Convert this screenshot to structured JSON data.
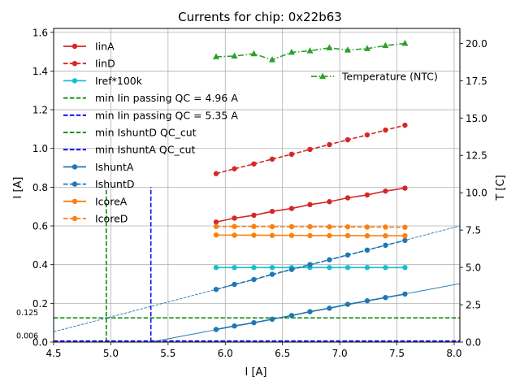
{
  "chart_data": {
    "type": "line",
    "title": "Currents for chip: 0x22b63",
    "xlabel": "I [A]",
    "ylabel": "I [A]",
    "y2label": "T [C]",
    "xlim": [
      4.5,
      8.05
    ],
    "ylim": [
      0.0,
      1.62
    ],
    "y2lim": [
      0.0,
      21.0
    ],
    "xticks": [
      "4.5",
      "5.0",
      "5.5",
      "6.0",
      "6.5",
      "7.0",
      "7.5",
      "8.0"
    ],
    "yticks": [
      "0.0",
      "0.2",
      "0.4",
      "0.6",
      "0.8",
      "1.0",
      "1.2",
      "1.4",
      "1.6"
    ],
    "y2ticks": [
      "0.0",
      "2.5",
      "5.0",
      "7.5",
      "10.0",
      "12.5",
      "15.0",
      "17.5",
      "20.0"
    ],
    "grid": true,
    "legend_position": "upper-left",
    "x": [
      5.92,
      6.08,
      6.25,
      6.41,
      6.58,
      6.74,
      6.91,
      7.07,
      7.24,
      7.4,
      7.57
    ],
    "series": [
      {
        "name": "IinA",
        "color": "#d62728",
        "dash": "solid",
        "axis": "left",
        "values": [
          0.62,
          0.64,
          0.655,
          0.675,
          0.69,
          0.71,
          0.725,
          0.745,
          0.76,
          0.78,
          0.795
        ]
      },
      {
        "name": "IinD",
        "color": "#d62728",
        "dash": "dashed",
        "axis": "left",
        "values": [
          0.87,
          0.895,
          0.92,
          0.945,
          0.97,
          0.995,
          1.02,
          1.045,
          1.07,
          1.095,
          1.12
        ]
      },
      {
        "name": "Iref*100k",
        "color": "#17becf",
        "dash": "solid",
        "axis": "left",
        "values": [
          0.385,
          0.385,
          0.385,
          0.385,
          0.385,
          0.385,
          0.385,
          0.385,
          0.385,
          0.385,
          0.385
        ]
      },
      {
        "name": "IshuntA",
        "color": "#1f77b4",
        "dash": "solid",
        "axis": "left",
        "values": [
          0.065,
          0.083,
          0.1,
          0.118,
          0.137,
          0.157,
          0.175,
          0.195,
          0.213,
          0.23,
          0.248
        ]
      },
      {
        "name": "IshuntD",
        "color": "#1f77b4",
        "dash": "dashed",
        "axis": "left",
        "values": [
          0.272,
          0.298,
          0.323,
          0.35,
          0.375,
          0.4,
          0.425,
          0.45,
          0.475,
          0.5,
          0.525
        ]
      },
      {
        "name": "IcoreA",
        "color": "#ff7f0e",
        "dash": "solid",
        "axis": "left",
        "values": [
          0.553,
          0.552,
          0.552,
          0.551,
          0.551,
          0.55,
          0.55,
          0.55,
          0.549,
          0.549,
          0.549
        ]
      },
      {
        "name": "IcoreD",
        "color": "#ff7f0e",
        "dash": "dashed",
        "axis": "left",
        "values": [
          0.597,
          0.597,
          0.597,
          0.596,
          0.596,
          0.596,
          0.595,
          0.595,
          0.594,
          0.594,
          0.593
        ]
      },
      {
        "name": "Temperature (NTC)",
        "color": "#2ca02c",
        "dash": "dashdot",
        "marker": "triangle",
        "axis": "right",
        "values": [
          19.1,
          19.15,
          19.3,
          18.9,
          19.4,
          19.5,
          19.7,
          19.55,
          19.65,
          19.85,
          20.0
        ]
      }
    ],
    "qc_lines": [
      {
        "name": "min Iin passing QC = 4.96 A",
        "color": "#008000",
        "orientation": "vertical",
        "x": 4.96,
        "y_top": 0.8
      },
      {
        "name": "min Iin passing QC = 5.35 A",
        "color": "#0000ff",
        "orientation": "vertical",
        "x": 5.35,
        "y_top": 0.8
      },
      {
        "name": "min IshuntD QC_cut",
        "color": "#008000",
        "orientation": "horizontal",
        "y": 0.125
      },
      {
        "name": "min IshuntA QC_cut",
        "color": "#0000ff",
        "orientation": "horizontal",
        "y": 0.006
      }
    ],
    "fit_lines": [
      {
        "of": "IshuntA",
        "color": "#1f77b4",
        "x": [
          5.35,
          8.05
        ],
        "y": [
          0.0,
          0.302
        ]
      },
      {
        "of": "IshuntD",
        "color": "#1f77b4",
        "x": [
          4.5,
          8.05
        ],
        "y": [
          0.053,
          0.6
        ]
      }
    ],
    "annotations": [
      {
        "text": "0.125",
        "x": 4.5,
        "y": 0.125
      },
      {
        "text": "0.006",
        "x": 4.5,
        "y": 0.006
      }
    ]
  }
}
